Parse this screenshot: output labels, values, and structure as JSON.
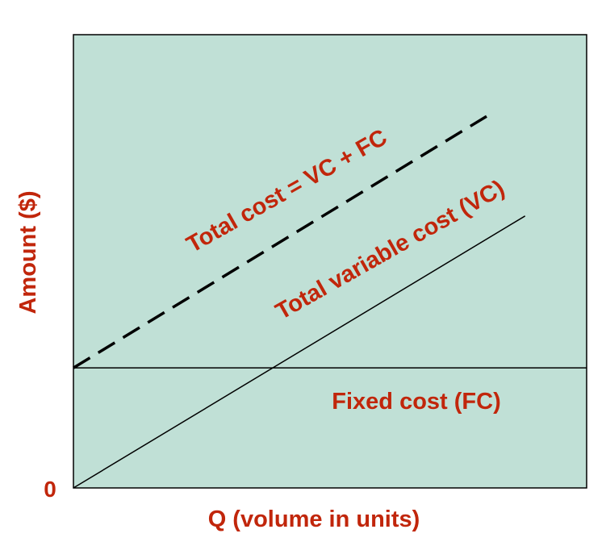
{
  "chart_data": {
    "type": "line",
    "title": "",
    "xlabel": "Q (volume in units)",
    "ylabel": "Amount ($)",
    "origin_label": "0",
    "xlim": [
      0,
      100
    ],
    "ylim": [
      0,
      100
    ],
    "grid": false,
    "legend": "none",
    "series": [
      {
        "key": "fc",
        "name": "Fixed cost (FC)",
        "style": "solid",
        "color": "#000000",
        "x": [
          0,
          100
        ],
        "y": [
          26.5,
          26.5
        ]
      },
      {
        "key": "vc",
        "name": "Total variable cost (VC)",
        "style": "solid",
        "color": "#000000",
        "x": [
          0,
          88
        ],
        "y": [
          0,
          60
        ]
      },
      {
        "key": "tc",
        "name": "Total cost = VC + FC",
        "style": "dashed",
        "color": "#000000",
        "x": [
          0,
          80.5
        ],
        "y": [
          26.5,
          82
        ]
      }
    ]
  },
  "colors": {
    "plot_background": "#c0e0d6",
    "label_text": "#c1260b",
    "axis_line": "#000000"
  }
}
